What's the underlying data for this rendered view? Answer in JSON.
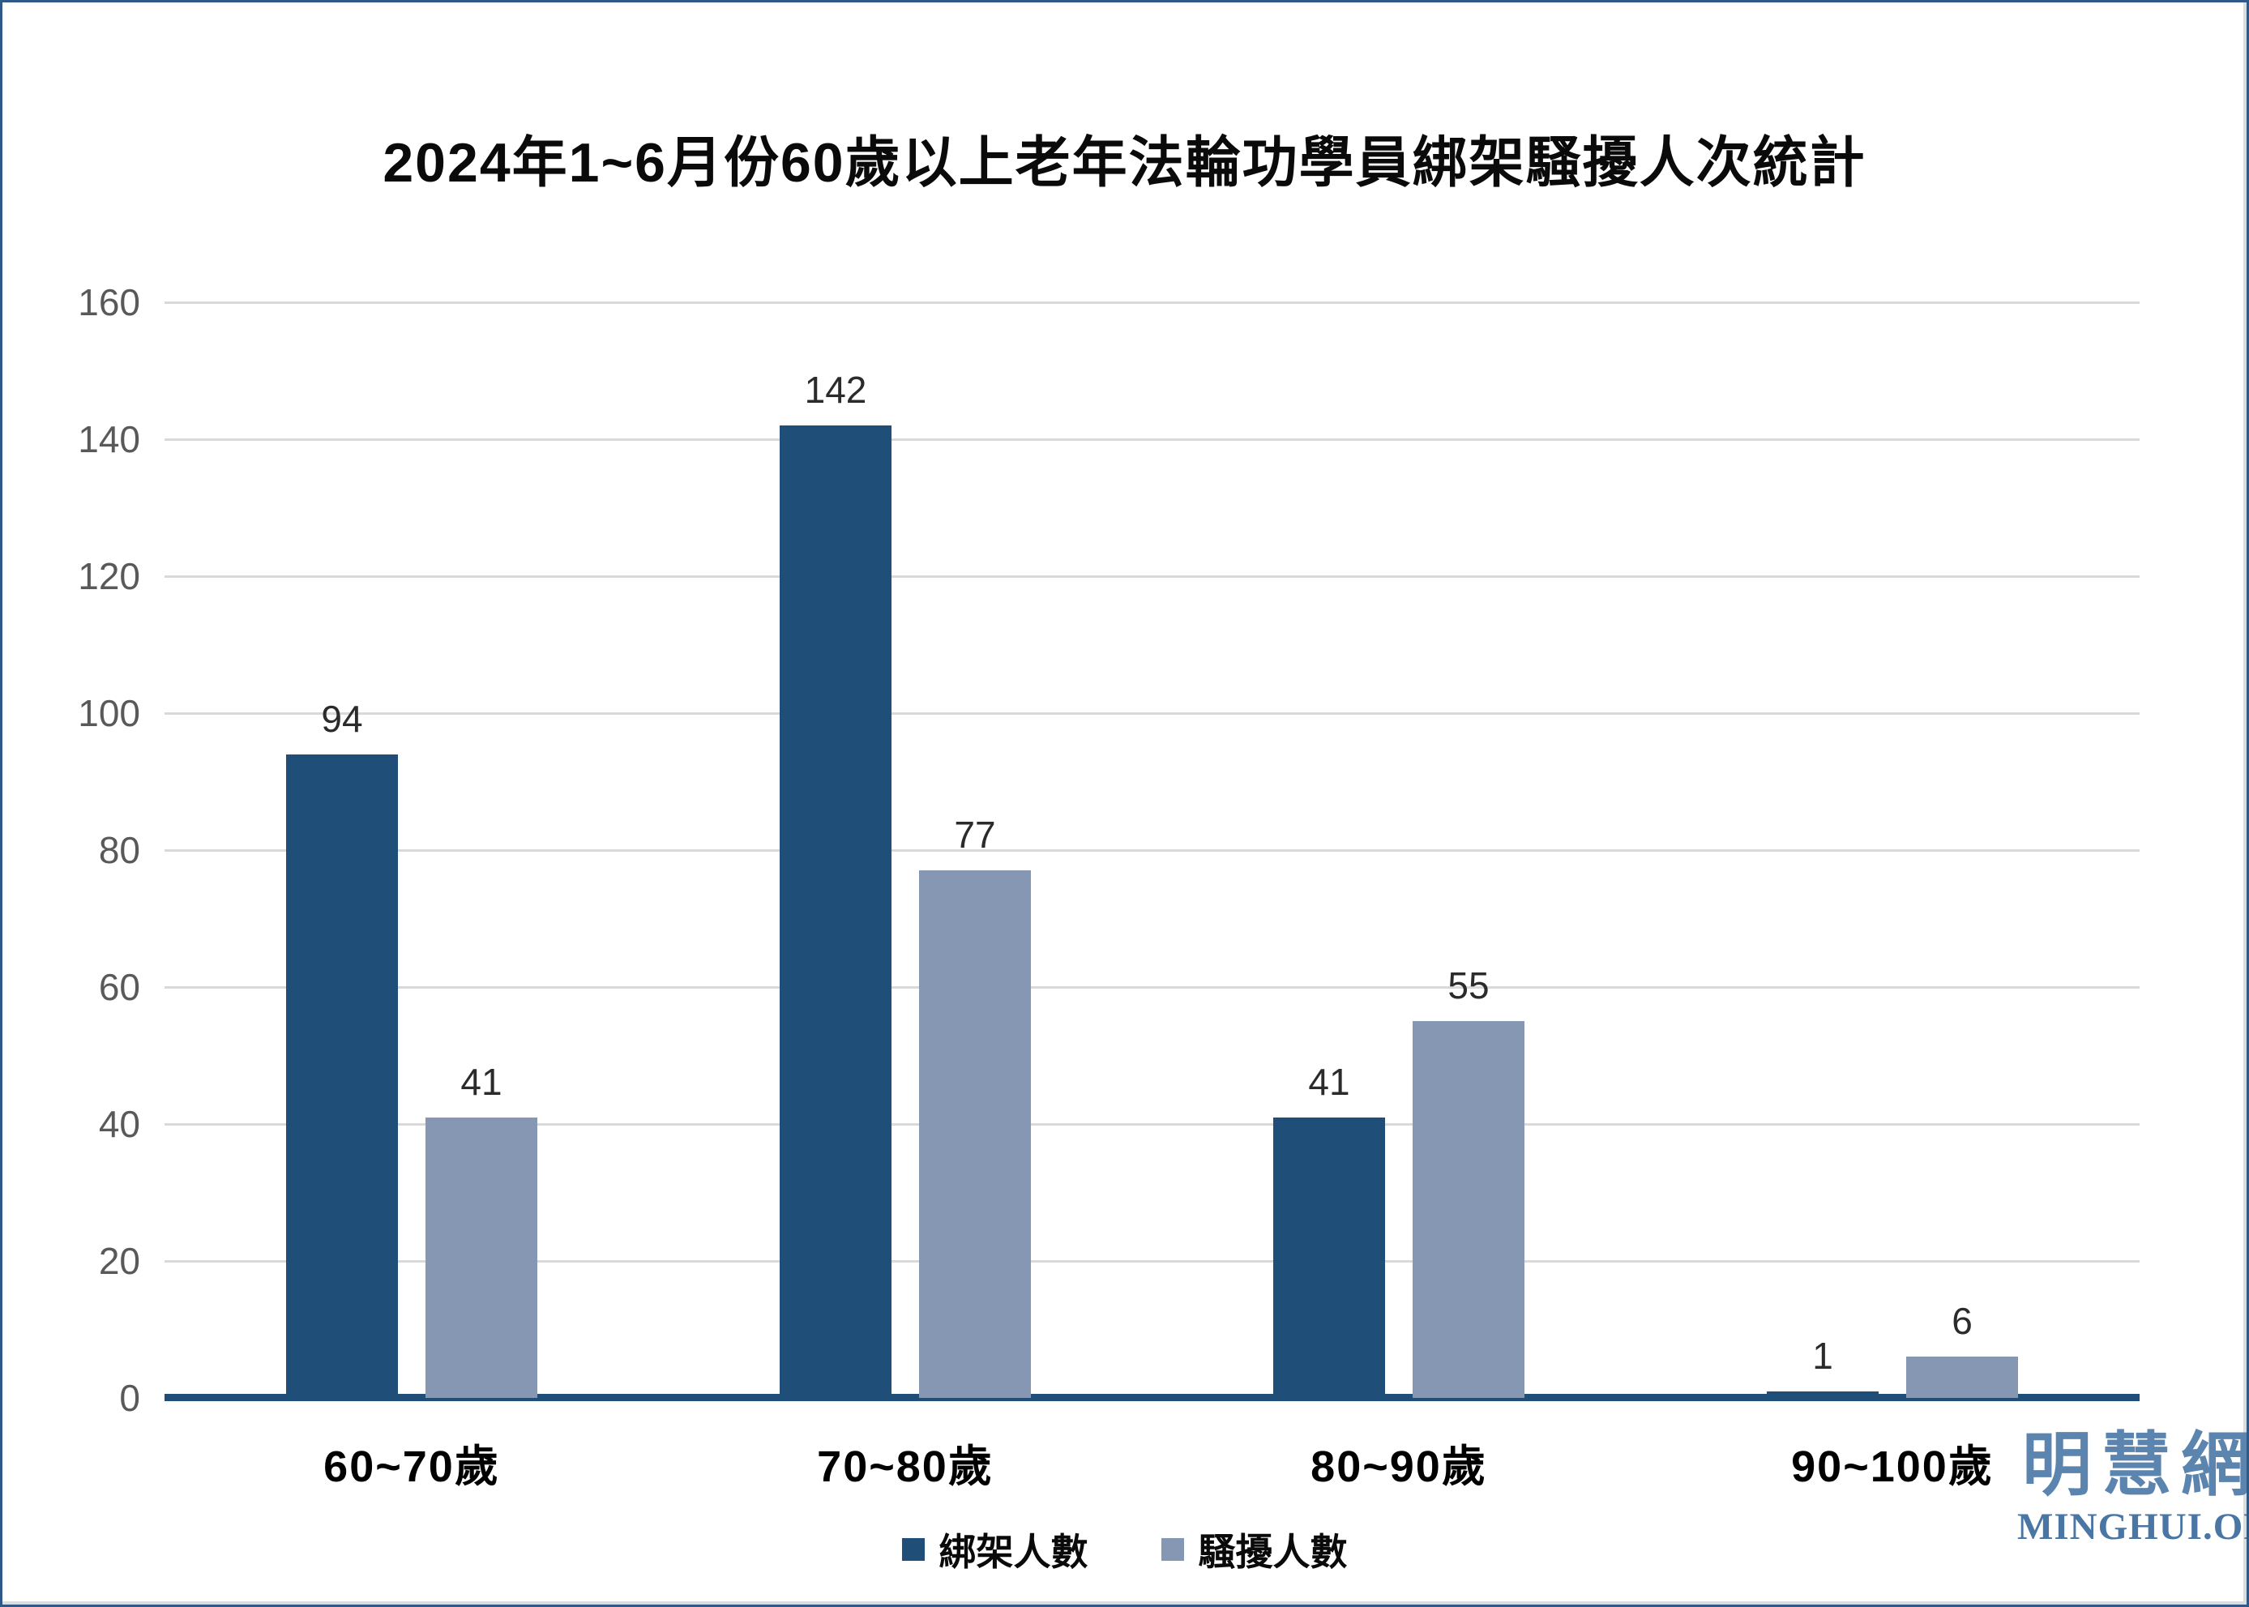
{
  "page": {
    "background": "#FFFFFF",
    "border_color": "#2E5A88",
    "inner_edge_color": "#DCDCDC"
  },
  "watermark": {
    "cjk": "明慧網",
    "latin": "MINGHUI.ORG",
    "color_cjk": "#5B84AF",
    "color_latin": "#4A76A4"
  },
  "chart_data": {
    "type": "bar",
    "title": "2024年1~6月份60歲以上老年法輪功學員綁架騷擾人次統計",
    "categories": [
      "60~70歲",
      "70~80歲",
      "80~90歲",
      "90~100歲"
    ],
    "series": [
      {
        "name": "綁架人數",
        "color": "#1F4E79",
        "values": [
          94,
          142,
          41,
          1
        ]
      },
      {
        "name": "騷擾人數",
        "color": "#8597B2",
        "values": [
          41,
          77,
          55,
          6
        ]
      }
    ],
    "ylim": [
      0,
      160
    ],
    "ytick_step": 20,
    "ytick_labels": [
      "160",
      "140",
      "120",
      "100",
      "80",
      "60",
      "40",
      "20",
      "0"
    ],
    "grid": "horizontal",
    "legend_position": "bottom",
    "colors": {
      "gridline": "#D9D9D9",
      "axis_line": "#1F4E79",
      "ytick_label": "#595959",
      "value_label": "#2B2B2B",
      "category_label": "#000000"
    }
  }
}
